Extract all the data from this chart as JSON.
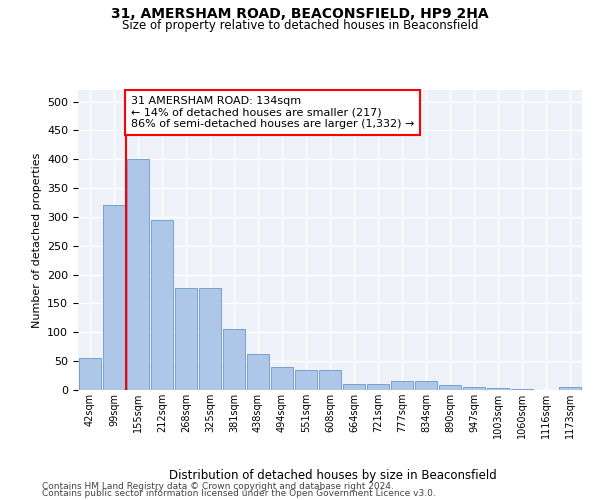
{
  "title1": "31, AMERSHAM ROAD, BEACONSFIELD, HP9 2HA",
  "title2": "Size of property relative to detached houses in Beaconsfield",
  "xlabel": "Distribution of detached houses by size in Beaconsfield",
  "ylabel": "Number of detached properties",
  "categories": [
    "42sqm",
    "99sqm",
    "155sqm",
    "212sqm",
    "268sqm",
    "325sqm",
    "381sqm",
    "438sqm",
    "494sqm",
    "551sqm",
    "608sqm",
    "664sqm",
    "721sqm",
    "777sqm",
    "834sqm",
    "890sqm",
    "947sqm",
    "1003sqm",
    "1060sqm",
    "1116sqm",
    "1173sqm"
  ],
  "values": [
    55,
    320,
    400,
    295,
    177,
    177,
    106,
    62,
    40,
    35,
    35,
    10,
    10,
    15,
    15,
    8,
    5,
    4,
    1,
    0,
    5
  ],
  "bar_color": "#aec6e8",
  "bar_edge_color": "#6699cc",
  "vline_x_index": 1.5,
  "vline_color": "red",
  "annotation_text": "31 AMERSHAM ROAD: 134sqm\n← 14% of detached houses are smaller (217)\n86% of semi-detached houses are larger (1,332) →",
  "annotation_box_color": "white",
  "annotation_box_edge_color": "red",
  "ylim": [
    0,
    520
  ],
  "yticks": [
    0,
    50,
    100,
    150,
    200,
    250,
    300,
    350,
    400,
    450,
    500
  ],
  "background_color": "#eef2f8",
  "fig_facecolor": "white",
  "footer1": "Contains HM Land Registry data © Crown copyright and database right 2024.",
  "footer2": "Contains public sector information licensed under the Open Government Licence v3.0."
}
